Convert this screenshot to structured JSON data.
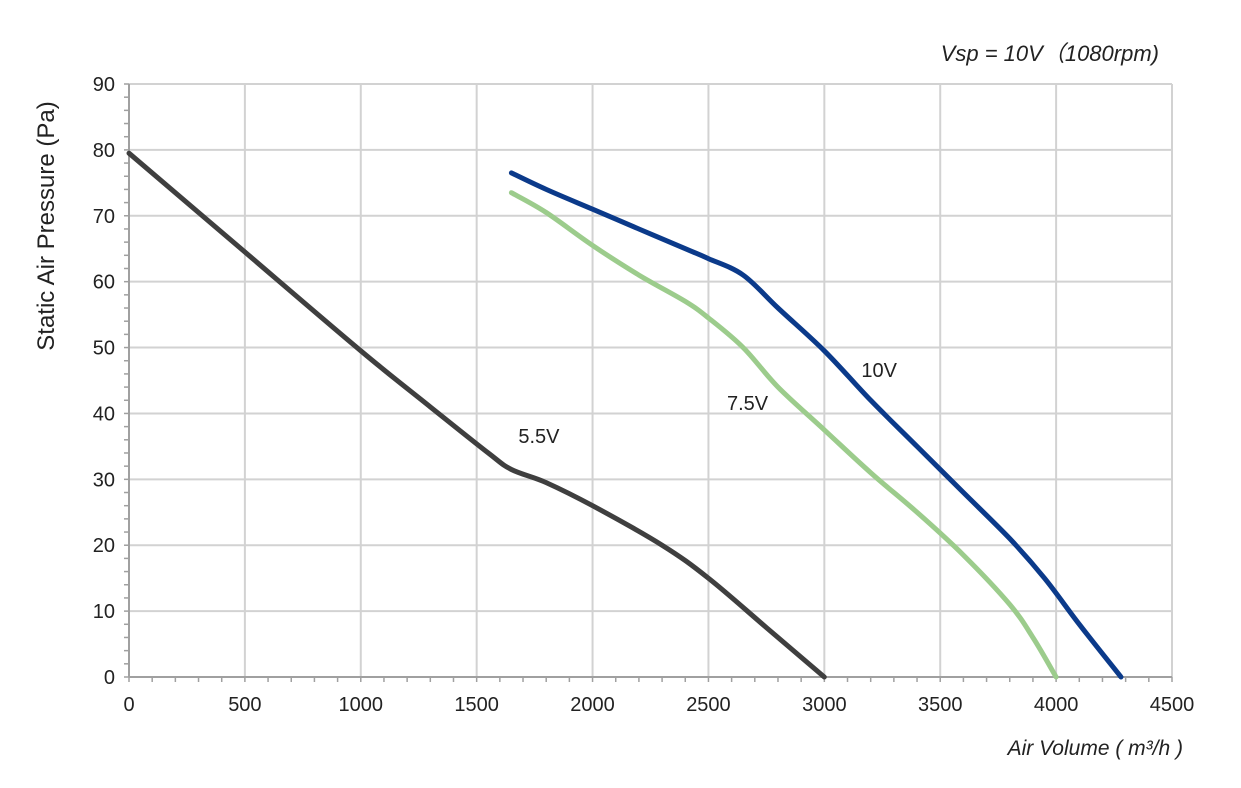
{
  "chart_data": {
    "type": "line",
    "subtitle": "Vsp = 10V（1080rpm)",
    "xlabel": "Air Volume ( m³/h )",
    "ylabel": "Static Air Pressure  (Pa)",
    "xlim": [
      0,
      4500
    ],
    "ylim": [
      0,
      90
    ],
    "xticks": [
      0,
      500,
      1000,
      1500,
      2000,
      2500,
      3000,
      3500,
      4000,
      4500
    ],
    "yticks": [
      0,
      10,
      20,
      30,
      40,
      50,
      60,
      70,
      80,
      90
    ],
    "grid": true,
    "series": [
      {
        "name": "5.5V",
        "color": "#3f3f3f",
        "points": [
          [
            0,
            79.5
          ],
          [
            500,
            64.5
          ],
          [
            1000,
            49.5
          ],
          [
            1300,
            41
          ],
          [
            1550,
            34
          ],
          [
            1650,
            31.5
          ],
          [
            1800,
            29.5
          ],
          [
            2000,
            26
          ],
          [
            2300,
            20
          ],
          [
            2500,
            15
          ],
          [
            2750,
            7.5
          ],
          [
            3000,
            0
          ]
        ]
      },
      {
        "name": "7.5V",
        "color": "#9ccc8c",
        "points": [
          [
            1650,
            73.5
          ],
          [
            1800,
            70.5
          ],
          [
            2000,
            65.5
          ],
          [
            2200,
            61
          ],
          [
            2400,
            57
          ],
          [
            2500,
            54.5
          ],
          [
            2650,
            50
          ],
          [
            2800,
            44
          ],
          [
            3000,
            37.5
          ],
          [
            3200,
            31
          ],
          [
            3400,
            25
          ],
          [
            3600,
            18.5
          ],
          [
            3800,
            11
          ],
          [
            3900,
            6
          ],
          [
            4000,
            0
          ]
        ]
      },
      {
        "name": "10V",
        "color": "#0b3a8a",
        "points": [
          [
            1650,
            76.5
          ],
          [
            1800,
            74
          ],
          [
            2000,
            71
          ],
          [
            2200,
            68
          ],
          [
            2400,
            65
          ],
          [
            2500,
            63.5
          ],
          [
            2650,
            61
          ],
          [
            2800,
            56
          ],
          [
            3000,
            49.5
          ],
          [
            3200,
            42
          ],
          [
            3400,
            35
          ],
          [
            3600,
            28
          ],
          [
            3800,
            21
          ],
          [
            3950,
            15
          ],
          [
            4100,
            8
          ],
          [
            4280,
            0
          ]
        ]
      }
    ],
    "annotations": [
      {
        "text": "5.5V",
        "x": 1680,
        "y": 35.5
      },
      {
        "text": "7.5V",
        "x": 2580,
        "y": 40.5
      },
      {
        "text": "10V",
        "x": 3160,
        "y": 45.5
      }
    ]
  }
}
